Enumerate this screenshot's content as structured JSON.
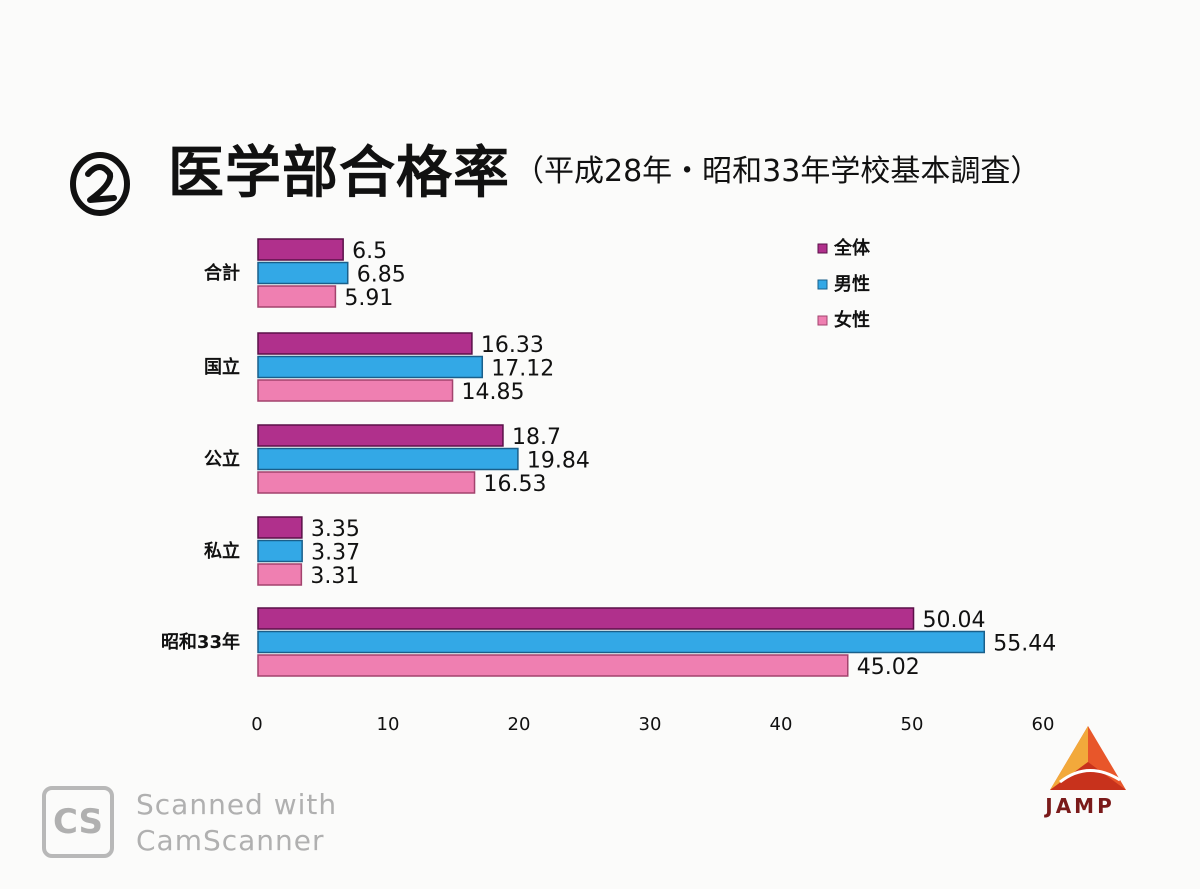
{
  "header": {
    "circled_number": "②",
    "title": "医学部合格率",
    "subtitle": "（平成28年・昭和33年学校基本調査）"
  },
  "watermark": {
    "icon": "CS",
    "line1": "Scanned with",
    "line2": "CamScanner"
  },
  "logo": {
    "text": "JAMP"
  },
  "colors": {
    "all": "#b0308c",
    "male": "#33a8e6",
    "female": "#ef7fb1"
  },
  "chart_data": {
    "type": "bar",
    "orientation": "horizontal",
    "categories": [
      "合計",
      "国立",
      "公立",
      "私立",
      "昭和33年"
    ],
    "series": [
      {
        "name": "全体",
        "values": [
          6.5,
          16.33,
          18.7,
          3.35,
          50.04
        ]
      },
      {
        "name": "男性",
        "values": [
          6.85,
          17.12,
          19.84,
          3.37,
          55.44
        ]
      },
      {
        "name": "女性",
        "values": [
          5.91,
          14.85,
          16.53,
          3.31,
          45.02
        ]
      }
    ],
    "value_labels": [
      [
        "6.5",
        "16.33",
        "18.7",
        "3.35",
        "50.04"
      ],
      [
        "6.85",
        "17.12",
        "19.84",
        "3.37",
        "55.44"
      ],
      [
        "5.91",
        "14.85",
        "16.53",
        "3.31",
        "45.02"
      ]
    ],
    "xlim": [
      0,
      60
    ],
    "xticks": [
      "0",
      "10",
      "20",
      "30",
      "40",
      "50",
      "60"
    ],
    "legend": "top-right",
    "grid": false
  }
}
